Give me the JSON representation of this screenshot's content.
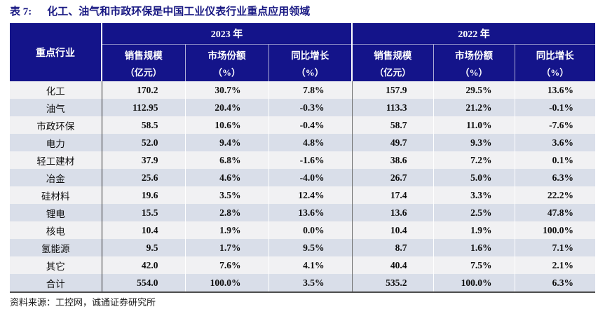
{
  "title": {
    "prefix": "表 7:",
    "text": "化工、油气和市政环保是中国工业仪表行业重点应用领域"
  },
  "colors": {
    "header_bg": "#14148A",
    "title_text": "#191983",
    "row_odd": "#F1F1F3",
    "row_even": "#D9DEE9",
    "bottom_border": "#4d4d4d"
  },
  "table": {
    "industry_header": "重点行业",
    "year_groups": [
      {
        "year": "2023 年",
        "columns": [
          {
            "name": "销售规模",
            "unit": "（亿元）"
          },
          {
            "name": "市场份额",
            "unit": "（%）"
          },
          {
            "name": "同比增长",
            "unit": "（%）"
          }
        ]
      },
      {
        "year": "2022 年",
        "columns": [
          {
            "name": "销售规模",
            "unit": "（亿元）"
          },
          {
            "name": "市场份额",
            "unit": "（%）"
          },
          {
            "name": "同比增长",
            "unit": "（%）"
          }
        ]
      }
    ],
    "rows": [
      {
        "industry": "化工",
        "values": [
          "170.2",
          "30.7%",
          "7.8%",
          "157.9",
          "29.5%",
          "13.6%"
        ]
      },
      {
        "industry": "油气",
        "values": [
          "112.95",
          "20.4%",
          "-0.3%",
          "113.3",
          "21.2%",
          "-0.1%"
        ]
      },
      {
        "industry": "市政环保",
        "values": [
          "58.5",
          "10.6%",
          "-0.4%",
          "58.7",
          "11.0%",
          "-7.6%"
        ]
      },
      {
        "industry": "电力",
        "values": [
          "52.0",
          "9.4%",
          "4.8%",
          "49.7",
          "9.3%",
          "3.6%"
        ]
      },
      {
        "industry": "轻工建材",
        "values": [
          "37.9",
          "6.8%",
          "-1.6%",
          "38.6",
          "7.2%",
          "0.1%"
        ]
      },
      {
        "industry": "冶金",
        "values": [
          "25.6",
          "4.6%",
          "-4.0%",
          "26.7",
          "5.0%",
          "6.3%"
        ]
      },
      {
        "industry": "硅材料",
        "values": [
          "19.6",
          "3.5%",
          "12.4%",
          "17.4",
          "3.3%",
          "22.2%"
        ]
      },
      {
        "industry": "锂电",
        "values": [
          "15.5",
          "2.8%",
          "13.6%",
          "13.6",
          "2.5%",
          "47.8%"
        ]
      },
      {
        "industry": "核电",
        "values": [
          "10.4",
          "1.9%",
          "0.0%",
          "10.4",
          "1.9%",
          "100.0%"
        ]
      },
      {
        "industry": "氢能源",
        "values": [
          "9.5",
          "1.7%",
          "9.5%",
          "8.7",
          "1.6%",
          "7.1%"
        ]
      },
      {
        "industry": "其它",
        "values": [
          "42.0",
          "7.6%",
          "4.1%",
          "40.4",
          "7.5%",
          "2.1%"
        ]
      },
      {
        "industry": "合计",
        "values": [
          "554.0",
          "100.0%",
          "3.5%",
          "535.2",
          "100.0%",
          "6.3%"
        ]
      }
    ]
  },
  "footer": {
    "source": "资料来源：工控网，诚通证券研究所"
  }
}
